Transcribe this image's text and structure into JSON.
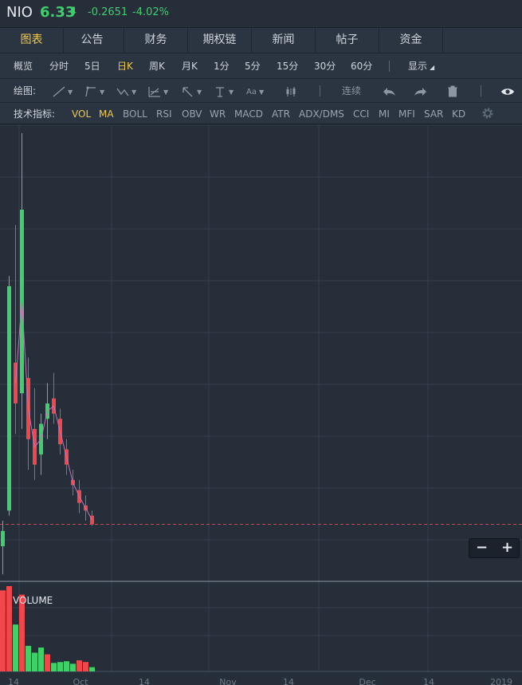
{
  "quote": {
    "symbol": "NIO",
    "price": "6.33",
    "arrow": "⬇",
    "change": "-0.2651",
    "change_pct": "-4.02%",
    "up_color": "#3fcf6b",
    "down_color": "#f0474d"
  },
  "tabs": [
    {
      "label": "图表",
      "active": true
    },
    {
      "label": "公告"
    },
    {
      "label": "财务"
    },
    {
      "label": "期权链"
    },
    {
      "label": "新闻"
    },
    {
      "label": "帖子"
    },
    {
      "label": "资金"
    }
  ],
  "periods": [
    "概览",
    "分时",
    "5日",
    "日K",
    "周K",
    "月K",
    "1分",
    "5分",
    "15分",
    "30分",
    "60分"
  ],
  "active_period": "日K",
  "display_label": "显示",
  "tools": {
    "label": "绘图:",
    "continuous": "连续",
    "icons": [
      "line-tool-icon",
      "fork-tool-icon",
      "wave-tool-icon",
      "fib-tool-icon",
      "arrow-tool-icon",
      "text-tool-icon",
      "font-size-icon",
      "candle-style-icon",
      "undo-icon",
      "redo-icon",
      "trash-icon",
      "eye-icon"
    ],
    "font_icon_text": "Aa"
  },
  "indicators": {
    "label": "技术指标:",
    "items": [
      "VOL",
      "MA",
      "BOLL",
      "RSI",
      "OBV",
      "WR",
      "MACD",
      "ATR",
      "ADX/DMS",
      "CCI",
      "MI",
      "MFI",
      "SAR",
      "KD"
    ],
    "active": [
      "VOL",
      "MA"
    ]
  },
  "volume_label": "VOLUME",
  "zoom": {
    "minus": "−",
    "plus": "+"
  },
  "x_labels": [
    "14",
    "Oct",
    "14",
    "Nov",
    "14",
    "Dec",
    "14",
    "2019"
  ],
  "chart_data": {
    "type": "candlestick",
    "y_range": [
      5.4,
      14.0
    ],
    "last_price": 6.33,
    "candles": [
      {
        "o": 5.9,
        "h": 6.4,
        "l": 5.35,
        "c": 6.2
      },
      {
        "o": 6.6,
        "h": 11.2,
        "l": 6.5,
        "c": 11.0
      },
      {
        "o": 9.5,
        "h": 12.2,
        "l": 8.1,
        "c": 8.7
      },
      {
        "o": 8.9,
        "h": 14.0,
        "l": 8.2,
        "c": 12.5
      },
      {
        "o": 9.2,
        "h": 9.6,
        "l": 7.4,
        "c": 8.0
      },
      {
        "o": 8.2,
        "h": 9.0,
        "l": 7.2,
        "c": 7.5
      },
      {
        "o": 7.7,
        "h": 8.5,
        "l": 7.3,
        "c": 8.3
      },
      {
        "o": 8.4,
        "h": 9.1,
        "l": 8.0,
        "c": 8.7
      },
      {
        "o": 8.8,
        "h": 9.3,
        "l": 8.3,
        "c": 8.5
      },
      {
        "o": 8.4,
        "h": 8.6,
        "l": 7.7,
        "c": 7.9
      },
      {
        "o": 7.8,
        "h": 8.0,
        "l": 7.3,
        "c": 7.5
      },
      {
        "o": 7.2,
        "h": 7.4,
        "l": 6.9,
        "c": 7.1
      },
      {
        "o": 7.0,
        "h": 7.2,
        "l": 6.55,
        "c": 6.75
      },
      {
        "o": 6.7,
        "h": 6.9,
        "l": 6.4,
        "c": 6.6
      },
      {
        "o": 6.5,
        "h": 6.6,
        "l": 6.3,
        "c": 6.33
      }
    ],
    "volumes": [
      0.95,
      1.0,
      0.55,
      0.9,
      0.3,
      0.22,
      0.28,
      0.2,
      0.1,
      0.11,
      0.12,
      0.09,
      0.13,
      0.11,
      0.05
    ],
    "vol_colors": [
      "down",
      "down",
      "up",
      "down",
      "up",
      "up",
      "up",
      "down",
      "up",
      "up",
      "up",
      "up",
      "down",
      "down",
      "up"
    ]
  }
}
